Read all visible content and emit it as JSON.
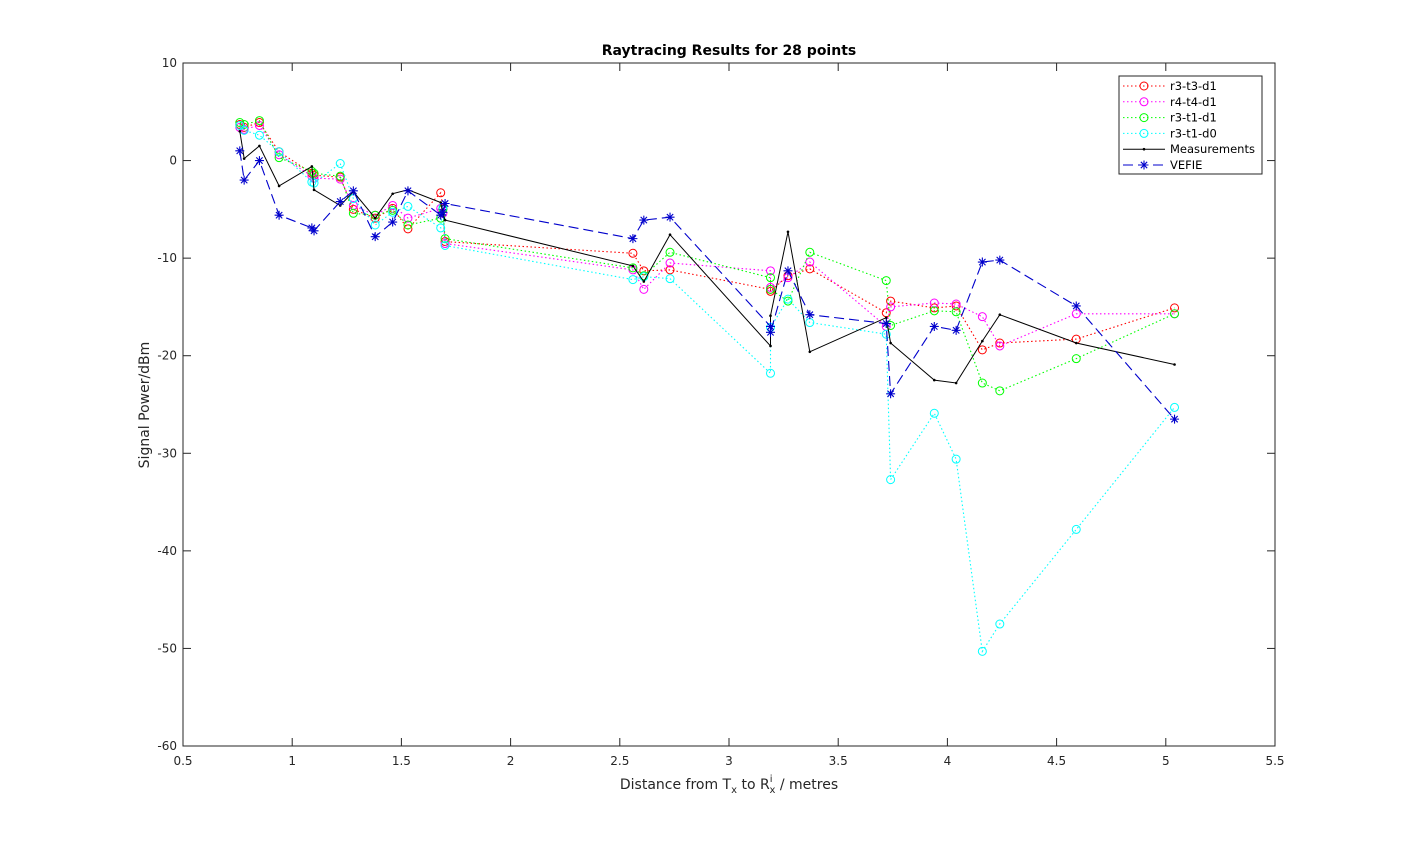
{
  "chart_data": {
    "type": "line",
    "title": "Raytracing Results for 28 points",
    "xlabel": {
      "prefix": "Distance from T",
      "tx_sub": "x",
      "mid": " to R",
      "rx_sup": "i",
      "rx_sub": "x",
      "suffix": " / metres"
    },
    "ylabel": "Signal Power/dBm",
    "xlim": [
      0.5,
      5.5
    ],
    "ylim": [
      -60,
      10
    ],
    "xticks": [
      0.5,
      1,
      1.5,
      2,
      2.5,
      3,
      3.5,
      4,
      4.5,
      5,
      5.5
    ],
    "xtick_labels": [
      "0.5",
      "1",
      "1.5",
      "2",
      "2.5",
      "3",
      "3.5",
      "4",
      "4.5",
      "5",
      "5.5"
    ],
    "yticks": [
      10,
      0,
      -10,
      -20,
      -30,
      -40,
      -50,
      -60
    ],
    "ytick_labels": [
      "10",
      "0",
      "-10",
      "-20",
      "-30",
      "-40",
      "-50",
      "-60"
    ],
    "grid": false,
    "legend_position": "top-right",
    "series": [
      {
        "name": "r3-t3-d1",
        "color": "#ff0000",
        "line_style": "dotted",
        "marker": "circle",
        "points": [
          [
            0.76,
            3.7
          ],
          [
            0.78,
            3.4
          ],
          [
            0.85,
            3.9
          ],
          [
            0.94,
            0.9
          ],
          [
            1.09,
            -1.3
          ],
          [
            1.1,
            -1.5
          ],
          [
            1.22,
            -1.7
          ],
          [
            1.28,
            -5.0
          ],
          [
            1.38,
            -5.9
          ],
          [
            1.46,
            -4.9
          ],
          [
            1.53,
            -7.0
          ],
          [
            1.68,
            -3.3
          ],
          [
            1.69,
            -4.9
          ],
          [
            1.7,
            -8.3
          ],
          [
            2.56,
            -9.5
          ],
          [
            2.61,
            -11.3
          ],
          [
            2.73,
            -11.2
          ],
          [
            3.19,
            -13.2
          ],
          [
            3.19,
            -13.4
          ],
          [
            3.27,
            -11.8
          ],
          [
            3.37,
            -11.1
          ],
          [
            3.72,
            -15.6
          ],
          [
            3.74,
            -14.4
          ],
          [
            3.94,
            -15.1
          ],
          [
            4.04,
            -14.9
          ],
          [
            4.16,
            -19.4
          ],
          [
            4.24,
            -18.7
          ],
          [
            4.59,
            -18.3
          ],
          [
            5.04,
            -15.1
          ]
        ]
      },
      {
        "name": "r4-t4-d1",
        "color": "#ff00ff",
        "line_style": "dotted",
        "marker": "circle",
        "points": [
          [
            0.76,
            3.4
          ],
          [
            0.78,
            3.2
          ],
          [
            0.85,
            3.6
          ],
          [
            0.94,
            0.6
          ],
          [
            1.09,
            -1.6
          ],
          [
            1.1,
            -1.8
          ],
          [
            1.22,
            -1.9
          ],
          [
            1.28,
            -4.6
          ],
          [
            1.38,
            -5.6
          ],
          [
            1.46,
            -4.6
          ],
          [
            1.53,
            -5.9
          ],
          [
            1.68,
            -4.9
          ],
          [
            1.69,
            -5.4
          ],
          [
            1.7,
            -8.5
          ],
          [
            2.56,
            -11.2
          ],
          [
            2.61,
            -13.2
          ],
          [
            2.73,
            -10.5
          ],
          [
            3.19,
            -11.3
          ],
          [
            3.19,
            -13.0
          ],
          [
            3.27,
            -12.0
          ],
          [
            3.37,
            -10.4
          ],
          [
            3.72,
            -17.0
          ],
          [
            3.74,
            -15.0
          ],
          [
            3.94,
            -14.6
          ],
          [
            4.04,
            -14.7
          ],
          [
            4.16,
            -16.0
          ],
          [
            4.24,
            -19.0
          ],
          [
            4.59,
            -15.7
          ],
          [
            5.04,
            -15.7
          ]
        ]
      },
      {
        "name": "r3-t1-d1",
        "color": "#00ff00",
        "line_style": "dotted",
        "marker": "circle",
        "points": [
          [
            0.76,
            3.9
          ],
          [
            0.78,
            3.7
          ],
          [
            0.85,
            4.1
          ],
          [
            0.94,
            0.3
          ],
          [
            1.09,
            -1.1
          ],
          [
            1.1,
            -1.3
          ],
          [
            1.22,
            -1.6
          ],
          [
            1.28,
            -5.4
          ],
          [
            1.38,
            -5.6
          ],
          [
            1.46,
            -5.1
          ],
          [
            1.53,
            -6.6
          ],
          [
            1.68,
            -5.9
          ],
          [
            1.69,
            -5.0
          ],
          [
            1.7,
            -8.0
          ],
          [
            2.56,
            -11.0
          ],
          [
            2.61,
            -11.8
          ],
          [
            2.73,
            -9.4
          ],
          [
            3.19,
            -12.0
          ],
          [
            3.19,
            -13.2
          ],
          [
            3.27,
            -14.4
          ],
          [
            3.37,
            -9.4
          ],
          [
            3.72,
            -12.3
          ],
          [
            3.74,
            -16.9
          ],
          [
            3.94,
            -15.4
          ],
          [
            4.04,
            -15.5
          ],
          [
            4.16,
            -22.8
          ],
          [
            4.24,
            -23.6
          ],
          [
            4.59,
            -20.3
          ],
          [
            5.04,
            -15.7
          ]
        ]
      },
      {
        "name": "r3-t1-d0",
        "color": "#00ffff",
        "line_style": "dotted",
        "marker": "circle",
        "points": [
          [
            0.76,
            3.6
          ],
          [
            0.78,
            3.1
          ],
          [
            0.85,
            2.6
          ],
          [
            0.94,
            0.9
          ],
          [
            1.09,
            -2.2
          ],
          [
            1.1,
            -2.3
          ],
          [
            1.22,
            -0.3
          ],
          [
            1.28,
            -3.9
          ],
          [
            1.38,
            -6.6
          ],
          [
            1.46,
            -5.3
          ],
          [
            1.53,
            -4.7
          ],
          [
            1.68,
            -6.9
          ],
          [
            1.69,
            -4.8
          ],
          [
            1.7,
            -8.7
          ],
          [
            2.56,
            -12.2
          ],
          [
            2.61,
            -11.9
          ],
          [
            2.73,
            -12.1
          ],
          [
            3.19,
            -21.8
          ],
          [
            3.19,
            -17.1
          ],
          [
            3.27,
            -14.2
          ],
          [
            3.37,
            -16.6
          ],
          [
            3.72,
            -17.8
          ],
          [
            3.74,
            -32.7
          ],
          [
            3.94,
            -25.9
          ],
          [
            4.04,
            -30.6
          ],
          [
            4.16,
            -50.3
          ],
          [
            4.24,
            -47.5
          ],
          [
            4.59,
            -37.8
          ],
          [
            5.04,
            -25.3
          ]
        ]
      },
      {
        "name": "Measurements",
        "color": "#000000",
        "line_style": "solid",
        "marker": "point",
        "points": [
          [
            0.76,
            3.0
          ],
          [
            0.78,
            0.2
          ],
          [
            0.85,
            1.5
          ],
          [
            0.94,
            -2.6
          ],
          [
            1.09,
            -0.6
          ],
          [
            1.1,
            -3.0
          ],
          [
            1.22,
            -4.6
          ],
          [
            1.28,
            -3.2
          ],
          [
            1.38,
            -5.9
          ],
          [
            1.46,
            -3.4
          ],
          [
            1.53,
            -3.0
          ],
          [
            1.68,
            -4.3
          ],
          [
            1.69,
            -5.5
          ],
          [
            1.7,
            -6.1
          ],
          [
            2.56,
            -10.8
          ],
          [
            2.61,
            -12.4
          ],
          [
            2.73,
            -7.6
          ],
          [
            3.19,
            -19.0
          ],
          [
            3.19,
            -15.9
          ],
          [
            3.27,
            -7.3
          ],
          [
            3.37,
            -19.6
          ],
          [
            3.72,
            -16.1
          ],
          [
            3.74,
            -18.7
          ],
          [
            3.94,
            -22.5
          ],
          [
            4.04,
            -22.8
          ],
          [
            4.16,
            -18.5
          ],
          [
            4.24,
            -15.8
          ],
          [
            4.59,
            -18.7
          ],
          [
            5.04,
            -20.9
          ]
        ]
      },
      {
        "name": "VEFIE",
        "color": "#0000cc",
        "line_style": "dashed",
        "marker": "asterisk",
        "points": [
          [
            0.76,
            1.0
          ],
          [
            0.78,
            -2.0
          ],
          [
            0.85,
            0.0
          ],
          [
            0.94,
            -5.6
          ],
          [
            1.09,
            -6.9
          ],
          [
            1.1,
            -7.2
          ],
          [
            1.22,
            -4.2
          ],
          [
            1.28,
            -3.1
          ],
          [
            1.38,
            -7.8
          ],
          [
            1.46,
            -6.3
          ],
          [
            1.53,
            -3.1
          ],
          [
            1.68,
            -5.6
          ],
          [
            1.69,
            -5.3
          ],
          [
            1.7,
            -4.4
          ],
          [
            2.56,
            -8.0
          ],
          [
            2.61,
            -6.1
          ],
          [
            2.73,
            -5.8
          ],
          [
            3.19,
            -17.0
          ],
          [
            3.19,
            -17.6
          ],
          [
            3.27,
            -11.3
          ],
          [
            3.37,
            -15.8
          ],
          [
            3.72,
            -16.7
          ],
          [
            3.74,
            -23.9
          ],
          [
            3.94,
            -17.0
          ],
          [
            4.04,
            -17.4
          ],
          [
            4.16,
            -10.4
          ],
          [
            4.24,
            -10.2
          ],
          [
            4.59,
            -14.9
          ],
          [
            5.04,
            -26.5
          ]
        ]
      }
    ]
  }
}
